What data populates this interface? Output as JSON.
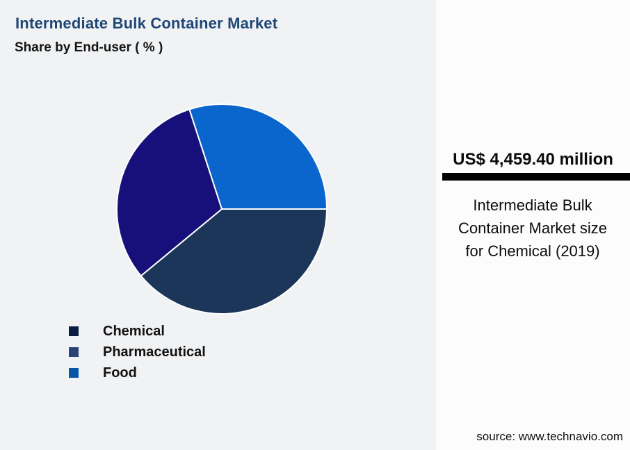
{
  "page": {
    "background_color": "#F1F2F4",
    "title_color": "#1E4675"
  },
  "chart_data": {
    "type": "pie",
    "title": "Intermediate Bulk Container Market",
    "subtitle": "Share by End-user ( % )",
    "labels": [
      "Chemical",
      "Pharmaceutical",
      "Food"
    ],
    "values": [
      39,
      31,
      30
    ],
    "slice_colors": [
      "#1B3659",
      "#18107A",
      "#0A66CC"
    ],
    "legend_swatch_colors": [
      "#0A1C42",
      "#2B4274",
      "#0757A8"
    ],
    "slice_stroke_color": "#FFFFFF",
    "start_angle_deg_clockwise_from_north": 90,
    "legend_position": "bottom-left",
    "data_labels": false
  },
  "callout": {
    "value": "US$ 4,459.40 million",
    "description": "Intermediate Bulk Container Market size for Chemical (2019)",
    "divider_color": "#000000",
    "background_color": "#FCFCFC",
    "source": "source: www.technavio.com"
  }
}
